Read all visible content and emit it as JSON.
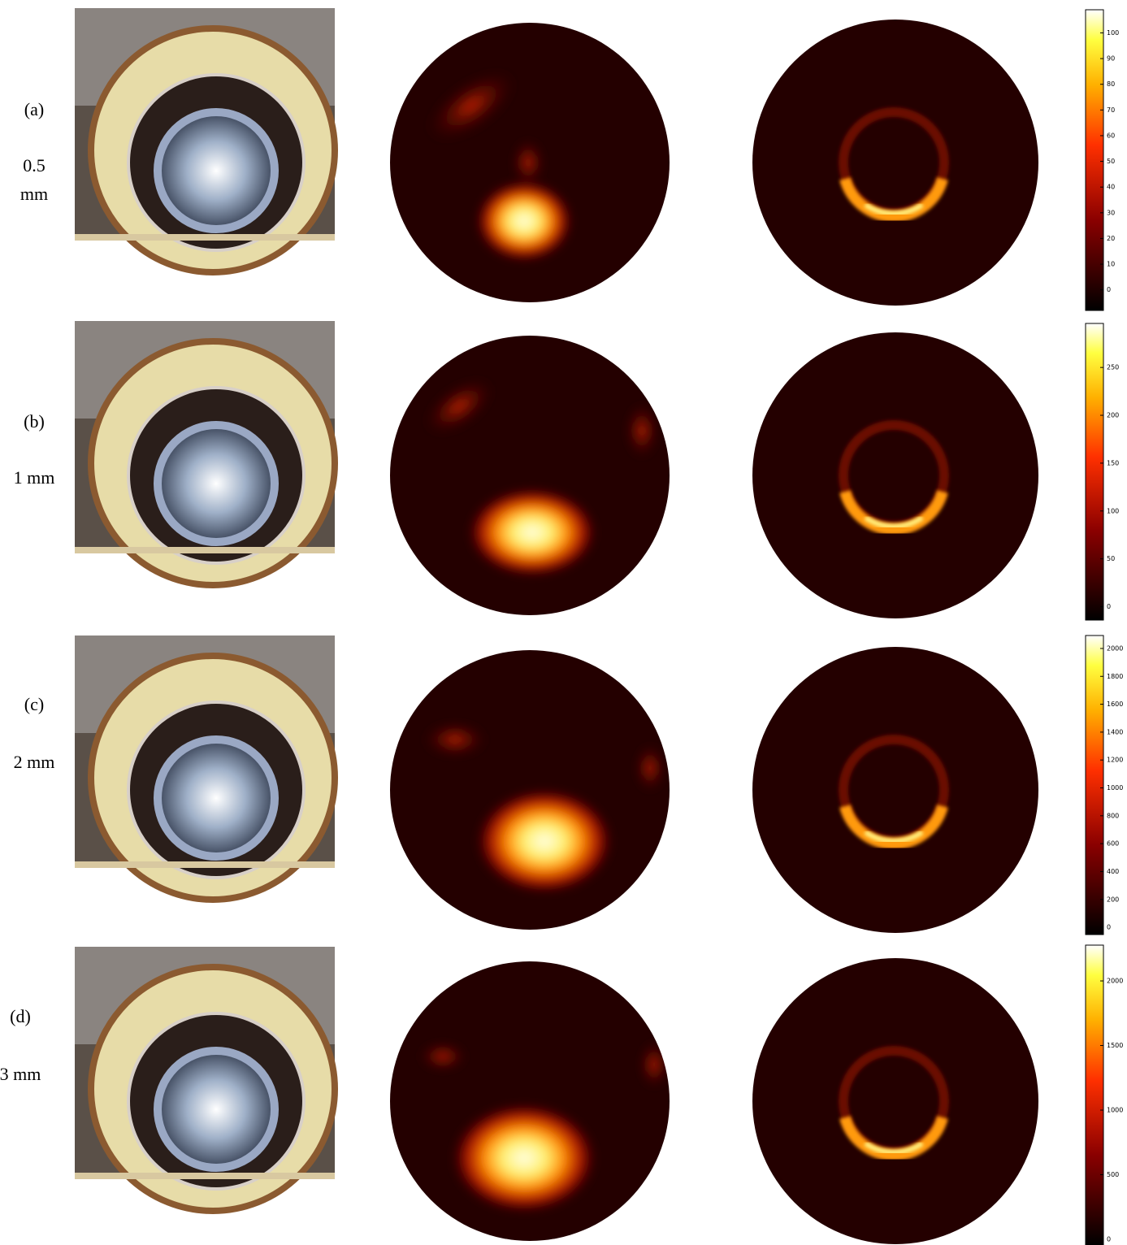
{
  "rows": [
    {
      "label": "(a)",
      "thickness": "0.5 mm",
      "colorbar": {
        "lim": [
          -8,
          109
        ],
        "ticks": [
          0,
          10,
          20,
          30,
          40,
          50,
          60,
          70,
          80,
          90,
          100
        ]
      }
    },
    {
      "label": "(b)",
      "thickness": "1 mm",
      "colorbar": {
        "lim": [
          -14,
          296
        ],
        "ticks": [
          0,
          50,
          100,
          150,
          200,
          250
        ]
      }
    },
    {
      "label": "(c)",
      "thickness": "2 mm",
      "colorbar": {
        "lim": [
          -52,
          2093
        ],
        "ticks": [
          0,
          200,
          400,
          600,
          800,
          1000,
          1200,
          1400,
          1600,
          1800,
          2000
        ]
      }
    },
    {
      "label": "(d)",
      "thickness": "3 mm",
      "colorbar": {
        "lim": [
          -44,
          2277
        ],
        "ticks": [
          0,
          500,
          1000,
          1500,
          2000
        ]
      }
    }
  ]
}
